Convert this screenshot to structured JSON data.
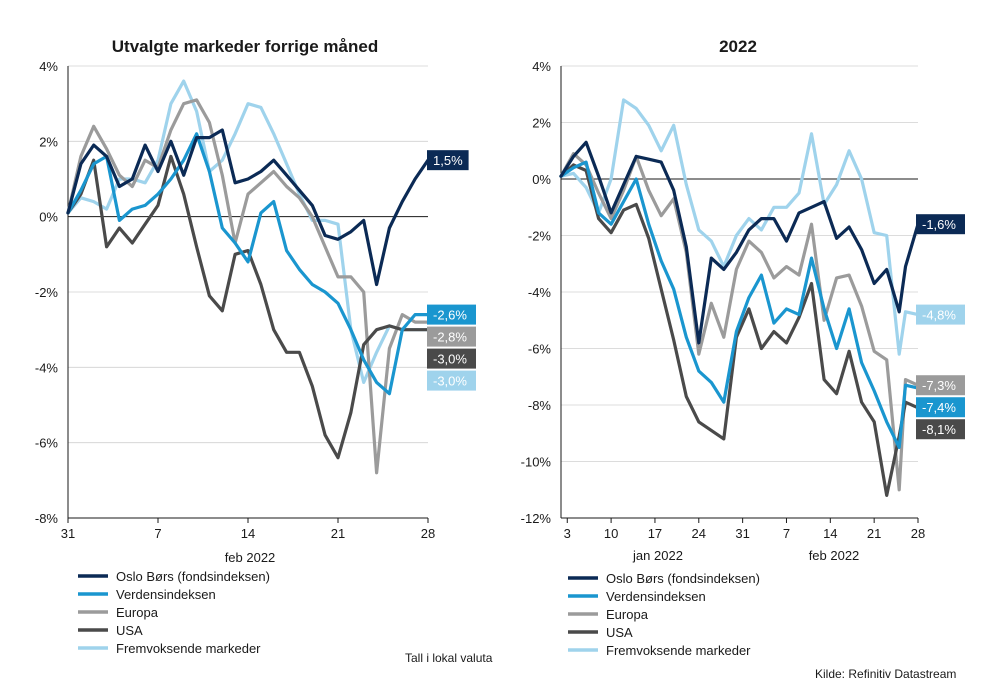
{
  "notes": {
    "currency": "Tall i lokal valuta",
    "source": "Kilde: Refinitiv Datastream"
  },
  "colors": {
    "Oslo Børs (fondsindeksen)": "#0b2a55",
    "Verdensindeksen": "#1a96cf",
    "Europa": "#9b9b9b",
    "USA": "#4a4a4a",
    "Fremvoksende markeder": "#9fd3ec"
  },
  "chart_data": [
    {
      "type": "line",
      "title": "Utvalgte markeder forrige måned",
      "xlabel": "feb 2022",
      "ylim": [
        -8,
        4
      ],
      "xlim": [
        0,
        28
      ],
      "yticks": [
        4,
        2,
        0,
        -2,
        -4,
        -6,
        -8
      ],
      "ytick_labels": [
        "4%",
        "2%",
        "0%",
        "-2%",
        "-4%",
        "-6%",
        "-8%"
      ],
      "xticks": [
        0,
        7,
        14,
        21,
        28
      ],
      "xtick_labels": [
        "31",
        "7",
        "14",
        "21",
        "28"
      ],
      "legend": "bottom-left",
      "series": [
        {
          "name": "Oslo Børs (fondsindeksen)",
          "end_label": "1,5%",
          "x": [
            0,
            1,
            2,
            3,
            4,
            5,
            6,
            7,
            8,
            9,
            10,
            11,
            12,
            13,
            14,
            15,
            16,
            17,
            18,
            19,
            20,
            21,
            22,
            23,
            24,
            25,
            26,
            27,
            28
          ],
          "y": [
            0.1,
            1.4,
            1.9,
            1.6,
            0.8,
            1.0,
            1.9,
            1.2,
            2.0,
            1.1,
            2.1,
            2.1,
            2.3,
            0.9,
            1.0,
            1.2,
            1.5,
            1.1,
            0.7,
            0.3,
            -0.5,
            -0.6,
            -0.4,
            -0.1,
            -1.8,
            -0.3,
            0.4,
            1.0,
            1.5
          ]
        },
        {
          "name": "Verdensindeksen",
          "end_label": "-2,6%",
          "x": [
            0,
            1,
            2,
            3,
            4,
            5,
            6,
            7,
            8,
            9,
            10,
            11,
            12,
            13,
            14,
            15,
            16,
            17,
            18,
            19,
            20,
            21,
            22,
            23,
            24,
            25,
            26,
            27,
            28
          ],
          "y": [
            0.1,
            0.7,
            1.4,
            1.6,
            -0.1,
            0.2,
            0.3,
            0.6,
            1.0,
            1.5,
            2.2,
            1.2,
            -0.3,
            -0.7,
            -1.2,
            0.1,
            0.4,
            -0.9,
            -1.4,
            -1.8,
            -2.0,
            -2.3,
            -3.0,
            -3.8,
            -4.4,
            -4.7,
            -3.0,
            -2.6,
            -2.6
          ]
        },
        {
          "name": "Europa",
          "end_label": "-2,8%",
          "x": [
            0,
            1,
            2,
            3,
            4,
            5,
            6,
            7,
            8,
            9,
            10,
            11,
            12,
            13,
            14,
            15,
            16,
            17,
            18,
            19,
            20,
            21,
            22,
            23,
            24,
            25,
            26,
            27,
            28
          ],
          "y": [
            0.1,
            1.6,
            2.4,
            1.8,
            1.1,
            0.8,
            1.5,
            1.3,
            2.3,
            3.0,
            3.1,
            2.5,
            1.1,
            -0.7,
            0.6,
            0.9,
            1.2,
            0.8,
            0.5,
            0.0,
            -0.8,
            -1.6,
            -1.6,
            -2.0,
            -6.8,
            -3.5,
            -2.6,
            -2.8,
            -2.8
          ]
        },
        {
          "name": "USA",
          "end_label": "-3,0%",
          "x": [
            0,
            1,
            2,
            3,
            4,
            5,
            6,
            7,
            8,
            9,
            10,
            11,
            12,
            13,
            14,
            15,
            16,
            17,
            18,
            19,
            20,
            21,
            22,
            23,
            24,
            25,
            26,
            27,
            28
          ],
          "y": [
            0.1,
            0.6,
            1.5,
            -0.8,
            -0.3,
            -0.7,
            -0.2,
            0.3,
            1.6,
            0.6,
            -0.8,
            -2.1,
            -2.5,
            -1.0,
            -0.9,
            -1.8,
            -3.0,
            -3.6,
            -3.6,
            -4.5,
            -5.8,
            -6.4,
            -5.2,
            -3.4,
            -3.0,
            -2.9,
            -3.0,
            -3.0,
            -3.0
          ]
        },
        {
          "name": "Fremvoksende markeder",
          "end_label": "-3,0%",
          "x": [
            0,
            1,
            2,
            3,
            4,
            5,
            6,
            7,
            8,
            9,
            10,
            11,
            12,
            13,
            14,
            15,
            16,
            17,
            18,
            19,
            20,
            21,
            22,
            23,
            24,
            25,
            26,
            27,
            28
          ],
          "y": [
            0.1,
            0.5,
            0.4,
            0.2,
            1.0,
            1.0,
            0.9,
            1.5,
            3.0,
            3.6,
            2.8,
            1.2,
            1.5,
            2.2,
            3.0,
            2.9,
            2.2,
            1.4,
            0.6,
            -0.1,
            -0.1,
            -0.2,
            -3.0,
            -4.4,
            -3.6,
            -2.9,
            -3.0,
            -3.0,
            -3.0
          ]
        }
      ]
    },
    {
      "type": "line",
      "title": "2022",
      "xlabel": [
        "jan 2022",
        "feb 2022"
      ],
      "ylim": [
        -12,
        4
      ],
      "xlim": [
        "2022-01-02",
        "2022-02-28"
      ],
      "yticks": [
        4,
        2,
        0,
        -2,
        -4,
        -6,
        -8,
        -10,
        -12
      ],
      "ytick_labels": [
        "4%",
        "2%",
        "0%",
        "-2%",
        "-4%",
        "-6%",
        "-8%",
        "-10%",
        "-12%"
      ],
      "xticks": [
        "2022-01-03",
        "2022-01-10",
        "2022-01-17",
        "2022-01-24",
        "2022-01-31",
        "2022-02-07",
        "2022-02-14",
        "2022-02-21",
        "2022-02-28"
      ],
      "xtick_labels": [
        "3",
        "10",
        "17",
        "24",
        "31",
        "7",
        "14",
        "21",
        "28"
      ],
      "legend": "bottom-left",
      "series": [
        {
          "name": "Oslo Børs (fondsindeksen)",
          "end_label": "-1,6%",
          "x": [
            "2022-01-02",
            "2022-01-04",
            "2022-01-06",
            "2022-01-08",
            "2022-01-10",
            "2022-01-12",
            "2022-01-14",
            "2022-01-16",
            "2022-01-18",
            "2022-01-20",
            "2022-01-22",
            "2022-01-24",
            "2022-01-26",
            "2022-01-28",
            "2022-01-30",
            "2022-02-01",
            "2022-02-03",
            "2022-02-05",
            "2022-02-07",
            "2022-02-09",
            "2022-02-11",
            "2022-02-13",
            "2022-02-15",
            "2022-02-17",
            "2022-02-19",
            "2022-02-21",
            "2022-02-23",
            "2022-02-25",
            "2022-02-26",
            "2022-02-28"
          ],
          "y": [
            0.1,
            0.8,
            1.3,
            0.1,
            -1.2,
            -0.2,
            0.8,
            0.7,
            0.6,
            -0.4,
            -2.4,
            -5.8,
            -2.8,
            -3.2,
            -2.6,
            -1.8,
            -1.4,
            -1.4,
            -2.2,
            -1.2,
            -1.0,
            -0.8,
            -2.1,
            -1.7,
            -2.5,
            -3.7,
            -3.2,
            -4.7,
            -3.1,
            -1.6
          ]
        },
        {
          "name": "Verdensindeksen",
          "end_label": "-7,4%",
          "x": [
            "2022-01-02",
            "2022-01-04",
            "2022-01-06",
            "2022-01-08",
            "2022-01-10",
            "2022-01-12",
            "2022-01-14",
            "2022-01-16",
            "2022-01-18",
            "2022-01-20",
            "2022-01-22",
            "2022-01-24",
            "2022-01-26",
            "2022-01-28",
            "2022-01-30",
            "2022-02-01",
            "2022-02-03",
            "2022-02-05",
            "2022-02-07",
            "2022-02-09",
            "2022-02-11",
            "2022-02-13",
            "2022-02-15",
            "2022-02-17",
            "2022-02-19",
            "2022-02-21",
            "2022-02-23",
            "2022-02-25",
            "2022-02-26",
            "2022-02-28"
          ],
          "y": [
            0.1,
            0.4,
            0.6,
            -1.2,
            -1.6,
            -0.8,
            0.0,
            -1.6,
            -2.9,
            -3.9,
            -5.6,
            -6.8,
            -7.2,
            -7.9,
            -5.4,
            -4.2,
            -3.4,
            -5.1,
            -4.6,
            -4.8,
            -2.8,
            -4.6,
            -6.0,
            -4.6,
            -6.5,
            -7.5,
            -8.6,
            -9.5,
            -7.3,
            -7.4
          ]
        },
        {
          "name": "Europa",
          "end_label": "-7,3%",
          "x": [
            "2022-01-02",
            "2022-01-04",
            "2022-01-06",
            "2022-01-08",
            "2022-01-10",
            "2022-01-12",
            "2022-01-14",
            "2022-01-16",
            "2022-01-18",
            "2022-01-20",
            "2022-01-22",
            "2022-01-24",
            "2022-01-26",
            "2022-01-28",
            "2022-01-30",
            "2022-02-01",
            "2022-02-03",
            "2022-02-05",
            "2022-02-07",
            "2022-02-09",
            "2022-02-11",
            "2022-02-13",
            "2022-02-15",
            "2022-02-17",
            "2022-02-19",
            "2022-02-21",
            "2022-02-23",
            "2022-02-25",
            "2022-02-26",
            "2022-02-28"
          ],
          "y": [
            0.1,
            0.9,
            0.5,
            -0.5,
            -1.4,
            -0.4,
            0.8,
            -0.4,
            -1.3,
            -0.7,
            -2.6,
            -6.2,
            -4.4,
            -5.6,
            -3.2,
            -2.2,
            -2.6,
            -3.5,
            -3.1,
            -3.4,
            -1.6,
            -5.0,
            -3.5,
            -3.4,
            -4.5,
            -6.1,
            -6.4,
            -11.0,
            -7.1,
            -7.3
          ]
        },
        {
          "name": "USA",
          "end_label": "-8,1%",
          "x": [
            "2022-01-02",
            "2022-01-04",
            "2022-01-06",
            "2022-01-08",
            "2022-01-10",
            "2022-01-12",
            "2022-01-14",
            "2022-01-16",
            "2022-01-18",
            "2022-01-20",
            "2022-01-22",
            "2022-01-24",
            "2022-01-26",
            "2022-01-28",
            "2022-01-30",
            "2022-02-01",
            "2022-02-03",
            "2022-02-05",
            "2022-02-07",
            "2022-02-09",
            "2022-02-11",
            "2022-02-13",
            "2022-02-15",
            "2022-02-17",
            "2022-02-19",
            "2022-02-21",
            "2022-02-23",
            "2022-02-25",
            "2022-02-26",
            "2022-02-28"
          ],
          "y": [
            0.1,
            0.5,
            0.3,
            -1.4,
            -1.9,
            -1.1,
            -0.9,
            -2.1,
            -3.9,
            -5.7,
            -7.7,
            -8.6,
            -8.9,
            -9.2,
            -5.6,
            -4.6,
            -6.0,
            -5.4,
            -5.8,
            -4.9,
            -3.7,
            -7.1,
            -7.6,
            -6.1,
            -7.9,
            -8.6,
            -11.2,
            -9.1,
            -7.9,
            -8.1
          ]
        },
        {
          "name": "Fremvoksende markeder",
          "end_label": "-4,8%",
          "x": [
            "2022-01-02",
            "2022-01-04",
            "2022-01-06",
            "2022-01-08",
            "2022-01-10",
            "2022-01-12",
            "2022-01-14",
            "2022-01-16",
            "2022-01-18",
            "2022-01-20",
            "2022-01-22",
            "2022-01-24",
            "2022-01-26",
            "2022-01-28",
            "2022-01-30",
            "2022-02-01",
            "2022-02-03",
            "2022-02-05",
            "2022-02-07",
            "2022-02-09",
            "2022-02-11",
            "2022-02-13",
            "2022-02-15",
            "2022-02-17",
            "2022-02-19",
            "2022-02-21",
            "2022-02-23",
            "2022-02-25",
            "2022-02-26",
            "2022-02-28"
          ],
          "y": [
            0.1,
            0.2,
            -0.3,
            -1.2,
            0.0,
            2.8,
            2.5,
            1.9,
            1.0,
            1.9,
            -0.2,
            -1.8,
            -2.2,
            -3.1,
            -2.0,
            -1.4,
            -1.8,
            -1.0,
            -1.0,
            -0.5,
            1.6,
            -0.9,
            -0.2,
            1.0,
            0.0,
            -1.9,
            -2.0,
            -6.2,
            -4.7,
            -4.8
          ]
        }
      ]
    }
  ]
}
